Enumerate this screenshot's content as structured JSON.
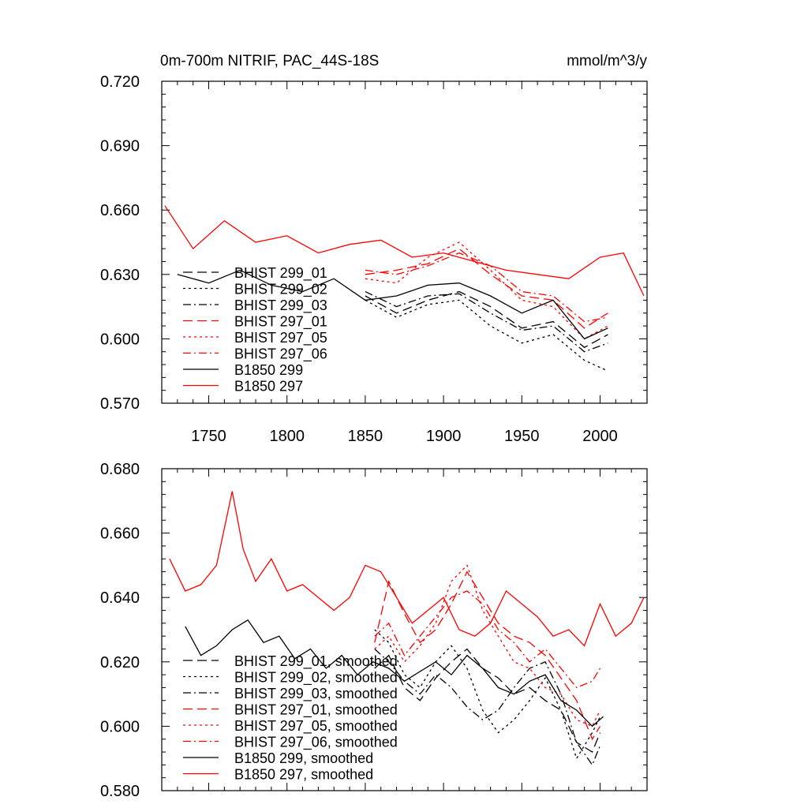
{
  "colors": {
    "black": "#000000",
    "red": "#ff0000",
    "frame": "#000000",
    "background": "#ffffff"
  },
  "chart_data": [
    {
      "type": "line",
      "title": "0m-700m NITRIF, PAC_44S-18S",
      "units": "mmol/m^3/y",
      "xlabel": "",
      "ylabel": "",
      "xlim": [
        1720,
        2030
      ],
      "ylim": [
        0.57,
        0.72
      ],
      "xticks": [
        1750,
        1800,
        1850,
        1900,
        1950,
        2000
      ],
      "xtick_labels": [
        "1750",
        "1800",
        "1850",
        "1900",
        "1950",
        "2000"
      ],
      "yticks": [
        0.57,
        0.6,
        0.63,
        0.66,
        0.69,
        0.72
      ],
      "ytick_labels": [
        "0.570",
        "0.600",
        "0.630",
        "0.660",
        "0.690",
        "0.720"
      ],
      "legend_position": "lower-left",
      "series": [
        {
          "name": "BHIST 299_01",
          "color": "#000000",
          "dash": "long-dash",
          "x": [
            1850,
            1870,
            1890,
            1910,
            1930,
            1950,
            1970,
            1990,
            2005
          ],
          "y": [
            0.62,
            0.612,
            0.618,
            0.622,
            0.615,
            0.605,
            0.608,
            0.596,
            0.602
          ]
        },
        {
          "name": "BHIST 299_02",
          "color": "#000000",
          "dash": "dot",
          "x": [
            1850,
            1870,
            1890,
            1910,
            1930,
            1950,
            1970,
            1990,
            2005
          ],
          "y": [
            0.618,
            0.61,
            0.616,
            0.618,
            0.606,
            0.598,
            0.602,
            0.59,
            0.585
          ]
        },
        {
          "name": "BHIST 299_03",
          "color": "#000000",
          "dash": "dash-dot",
          "x": [
            1850,
            1870,
            1890,
            1910,
            1930,
            1950,
            1970,
            1990,
            2005
          ],
          "y": [
            0.622,
            0.615,
            0.62,
            0.621,
            0.612,
            0.604,
            0.606,
            0.594,
            0.598
          ]
        },
        {
          "name": "BHIST 297_01",
          "color": "#ff0000",
          "dash": "long-dash",
          "x": [
            1850,
            1870,
            1890,
            1910,
            1930,
            1950,
            1970,
            1990,
            2005
          ],
          "y": [
            0.63,
            0.632,
            0.635,
            0.642,
            0.63,
            0.62,
            0.618,
            0.605,
            0.612
          ]
        },
        {
          "name": "BHIST 297_05",
          "color": "#ff0000",
          "dash": "dot",
          "x": [
            1850,
            1870,
            1890,
            1910,
            1930,
            1950,
            1970,
            1990,
            2005
          ],
          "y": [
            0.628,
            0.626,
            0.638,
            0.645,
            0.632,
            0.618,
            0.615,
            0.6,
            0.606
          ]
        },
        {
          "name": "BHIST 297_06",
          "color": "#ff0000",
          "dash": "dash-dot",
          "x": [
            1850,
            1870,
            1890,
            1910,
            1930,
            1950,
            1970,
            1990,
            2005
          ],
          "y": [
            0.632,
            0.63,
            0.634,
            0.64,
            0.634,
            0.622,
            0.62,
            0.608,
            0.61
          ]
        },
        {
          "name": "B1850 299",
          "color": "#000000",
          "dash": "solid",
          "x": [
            1730,
            1750,
            1770,
            1790,
            1810,
            1830,
            1850,
            1870,
            1890,
            1910,
            1930,
            1950,
            1970,
            1990,
            2005
          ],
          "y": [
            0.63,
            0.626,
            0.632,
            0.625,
            0.622,
            0.628,
            0.618,
            0.62,
            0.625,
            0.626,
            0.62,
            0.612,
            0.618,
            0.6,
            0.605
          ]
        },
        {
          "name": "B1850 297",
          "color": "#ff0000",
          "dash": "solid",
          "x": [
            1722,
            1740,
            1760,
            1780,
            1800,
            1820,
            1840,
            1860,
            1880,
            1900,
            1920,
            1940,
            1960,
            1980,
            2000,
            2015,
            2028
          ],
          "y": [
            0.662,
            0.642,
            0.655,
            0.645,
            0.648,
            0.64,
            0.644,
            0.646,
            0.638,
            0.64,
            0.636,
            0.632,
            0.63,
            0.628,
            0.638,
            0.64,
            0.62
          ]
        }
      ]
    },
    {
      "type": "line",
      "title": "",
      "xlabel": "",
      "ylabel": "",
      "xlim": [
        1720,
        2030
      ],
      "ylim": [
        0.58,
        0.68
      ],
      "xticks": [
        1750,
        1800,
        1850,
        1900,
        1950,
        2000
      ],
      "yticks": [
        0.58,
        0.6,
        0.62,
        0.64,
        0.66,
        0.68
      ],
      "ytick_labels": [
        "0.580",
        "0.600",
        "0.620",
        "0.640",
        "0.660",
        "0.680"
      ],
      "legend_position": "lower-left",
      "series": [
        {
          "name": "BHIST 299_01, smoothed",
          "color": "#000000",
          "dash": "long-dash",
          "x": [
            1856,
            1865,
            1875,
            1885,
            1895,
            1905,
            1915,
            1925,
            1935,
            1945,
            1955,
            1965,
            1975,
            1985,
            1995,
            2000
          ],
          "y": [
            0.618,
            0.622,
            0.612,
            0.608,
            0.615,
            0.62,
            0.624,
            0.618,
            0.615,
            0.61,
            0.612,
            0.608,
            0.605,
            0.595,
            0.592,
            0.598
          ]
        },
        {
          "name": "BHIST 299_02, smoothed",
          "color": "#000000",
          "dash": "dot",
          "x": [
            1856,
            1865,
            1875,
            1885,
            1895,
            1905,
            1915,
            1925,
            1935,
            1945,
            1955,
            1965,
            1975,
            1985,
            1995,
            2000
          ],
          "y": [
            0.63,
            0.626,
            0.616,
            0.612,
            0.62,
            0.625,
            0.618,
            0.605,
            0.598,
            0.602,
            0.608,
            0.615,
            0.605,
            0.59,
            0.598,
            0.603
          ]
        },
        {
          "name": "BHIST 299_03, smoothed",
          "color": "#000000",
          "dash": "dash-dot",
          "x": [
            1856,
            1865,
            1875,
            1885,
            1895,
            1905,
            1915,
            1925,
            1935,
            1945,
            1955,
            1965,
            1975,
            1985,
            1995,
            2000
          ],
          "y": [
            0.624,
            0.62,
            0.614,
            0.61,
            0.616,
            0.612,
            0.606,
            0.602,
            0.605,
            0.612,
            0.618,
            0.62,
            0.61,
            0.595,
            0.588,
            0.594
          ]
        },
        {
          "name": "BHIST 297_01, smoothed",
          "color": "#ff0000",
          "dash": "long-dash",
          "x": [
            1856,
            1865,
            1875,
            1885,
            1895,
            1905,
            1915,
            1925,
            1935,
            1945,
            1955,
            1965,
            1975,
            1985,
            1995,
            2000
          ],
          "y": [
            0.626,
            0.645,
            0.635,
            0.626,
            0.63,
            0.638,
            0.648,
            0.64,
            0.632,
            0.628,
            0.626,
            0.622,
            0.615,
            0.608,
            0.596,
            0.6
          ]
        },
        {
          "name": "BHIST 297_05, smoothed",
          "color": "#ff0000",
          "dash": "dot",
          "x": [
            1856,
            1865,
            1875,
            1885,
            1895,
            1905,
            1915,
            1925,
            1935,
            1945,
            1955,
            1965,
            1975,
            1985,
            1995,
            2000
          ],
          "y": [
            0.624,
            0.628,
            0.62,
            0.625,
            0.632,
            0.645,
            0.65,
            0.636,
            0.628,
            0.62,
            0.618,
            0.612,
            0.61,
            0.602,
            0.6,
            0.605
          ]
        },
        {
          "name": "BHIST 297_06, smoothed",
          "color": "#ff0000",
          "dash": "dash-dot",
          "x": [
            1856,
            1865,
            1875,
            1885,
            1895,
            1905,
            1915,
            1925,
            1935,
            1945,
            1955,
            1965,
            1975,
            1985,
            1995,
            2000
          ],
          "y": [
            0.628,
            0.632,
            0.622,
            0.628,
            0.634,
            0.64,
            0.642,
            0.638,
            0.63,
            0.626,
            0.62,
            0.624,
            0.618,
            0.612,
            0.614,
            0.618
          ]
        },
        {
          "name": "B1850 299, smoothed",
          "color": "#000000",
          "dash": "solid",
          "x": [
            1735,
            1745,
            1755,
            1765,
            1775,
            1785,
            1795,
            1805,
            1815,
            1825,
            1835,
            1845,
            1855,
            1865,
            1875,
            1885,
            1895,
            1905,
            1915,
            1925,
            1935,
            1945,
            1955,
            1965,
            1975,
            1985,
            1995,
            2002
          ],
          "y": [
            0.631,
            0.622,
            0.625,
            0.63,
            0.633,
            0.626,
            0.628,
            0.621,
            0.624,
            0.618,
            0.622,
            0.616,
            0.62,
            0.618,
            0.614,
            0.617,
            0.62,
            0.616,
            0.622,
            0.618,
            0.612,
            0.61,
            0.614,
            0.616,
            0.608,
            0.605,
            0.6,
            0.603
          ]
        },
        {
          "name": "B1850 297, smoothed",
          "color": "#ff0000",
          "dash": "solid",
          "x": [
            1725,
            1735,
            1745,
            1755,
            1765,
            1772,
            1780,
            1790,
            1800,
            1810,
            1820,
            1830,
            1840,
            1850,
            1860,
            1870,
            1880,
            1890,
            1900,
            1910,
            1920,
            1930,
            1940,
            1950,
            1960,
            1970,
            1980,
            1990,
            2000,
            2010,
            2020,
            2028
          ],
          "y": [
            0.652,
            0.642,
            0.644,
            0.65,
            0.673,
            0.655,
            0.645,
            0.652,
            0.642,
            0.644,
            0.64,
            0.636,
            0.64,
            0.65,
            0.648,
            0.64,
            0.632,
            0.636,
            0.64,
            0.63,
            0.628,
            0.632,
            0.642,
            0.638,
            0.634,
            0.628,
            0.63,
            0.625,
            0.638,
            0.628,
            0.632,
            0.64
          ]
        }
      ]
    }
  ]
}
